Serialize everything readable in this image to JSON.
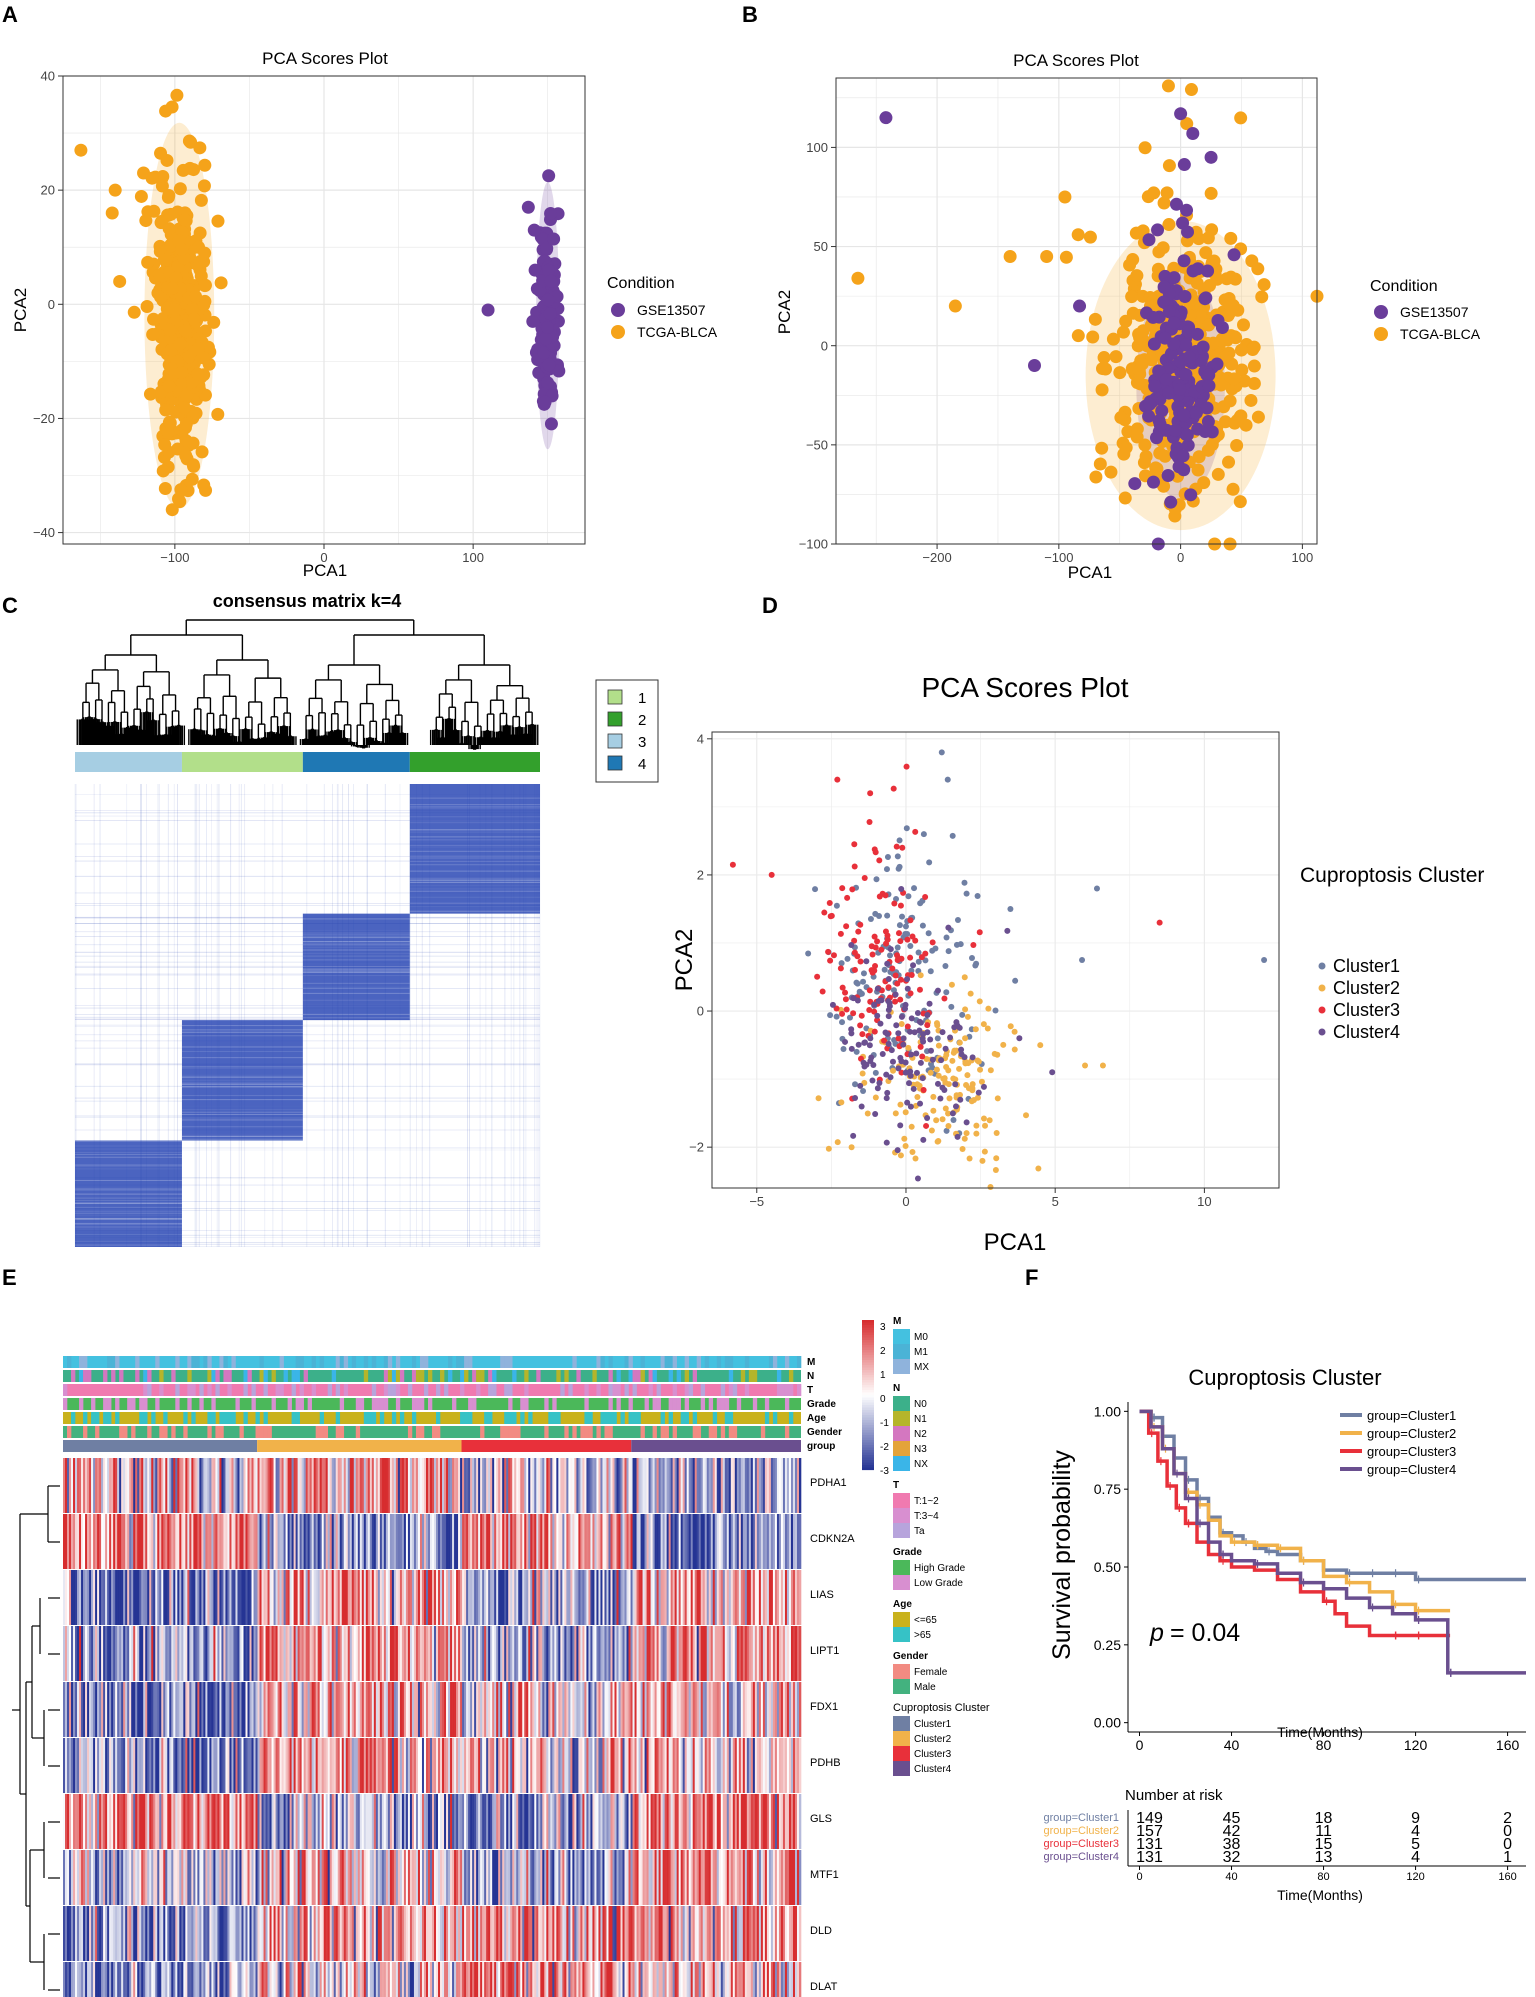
{
  "panel_labels": [
    "A",
    "B",
    "C",
    "D",
    "E",
    "F"
  ],
  "colors": {
    "gse": "#6a3d9a",
    "tcga": "#f5a31a",
    "cluster1": "#6f7fa3",
    "cluster2": "#f1b24a",
    "cluster3": "#e8303a",
    "cluster4": "#6a4f8f",
    "heat_low": "#253494",
    "heat_high": "#d7302f",
    "consensus": "#2b49b5",
    "cc1": "#b2df8a",
    "cc2": "#33a02c",
    "cc3": "#a6cee3",
    "cc4": "#1f78b4"
  },
  "chart_data": [
    {
      "id": "A",
      "type": "scatter",
      "title": "PCA Scores Plot",
      "xlabel": "PCA1",
      "ylabel": "PCA2",
      "xlim": [
        -175,
        175
      ],
      "ylim": [
        -42,
        40
      ],
      "xticks": [
        -100,
        0,
        100
      ],
      "yticks": [
        -40,
        -20,
        0,
        20,
        40
      ],
      "legend_title": "Condition",
      "series": [
        {
          "name": "GSE13507",
          "n": 160,
          "center": [
            150,
            -2
          ],
          "sd": [
            3,
            9
          ],
          "outliers": [
            [
              110,
              -1
            ],
            [
              140,
              -3
            ],
            [
              141,
              13
            ],
            [
              137,
              17
            ]
          ]
        },
        {
          "name": "TCGA-BLCA",
          "n": 420,
          "center": [
            -97,
            -2
          ],
          "sd": [
            9,
            13
          ],
          "outliers": [
            [
              -163,
              27
            ],
            [
              -142,
              16
            ],
            [
              -137,
              4
            ],
            [
              -140,
              20
            ],
            [
              -121,
              23
            ]
          ]
        }
      ]
    },
    {
      "id": "B",
      "type": "scatter",
      "title": "PCA Scores Plot",
      "xlabel": "PCA1",
      "ylabel": "PCA2",
      "xlim": [
        -283,
        112
      ],
      "ylim": [
        -100,
        135
      ],
      "xticks": [
        -200,
        -100,
        0,
        100
      ],
      "yticks": [
        -100,
        -50,
        0,
        50,
        100
      ],
      "legend_title": "Condition",
      "series": [
        {
          "name": "GSE13507",
          "n": 170,
          "center": [
            0,
            -20
          ],
          "sd": [
            14,
            22
          ],
          "outliers": [
            [
              -242,
              115
            ],
            [
              0,
              117
            ],
            [
              10,
              107
            ],
            [
              25,
              95
            ],
            [
              -120,
              -10
            ],
            [
              -83,
              20
            ]
          ]
        },
        {
          "name": "TCGA-BLCA",
          "n": 420,
          "center": [
            0,
            -15
          ],
          "sd": [
            30,
            30
          ],
          "outliers": [
            [
              -265,
              34
            ],
            [
              -185,
              20
            ],
            [
              -140,
              45
            ],
            [
              -95,
              75
            ],
            [
              -110,
              45
            ],
            [
              -10,
              131
            ]
          ]
        }
      ]
    },
    {
      "id": "C",
      "type": "heatmap",
      "title": "consensus matrix k=4",
      "top_bar_order": [
        3,
        1,
        4,
        2
      ],
      "block_proportions": [
        0.23,
        0.26,
        0.23,
        0.28
      ],
      "legend": [
        "1",
        "2",
        "3",
        "4"
      ]
    },
    {
      "id": "D",
      "type": "scatter",
      "title": "PCA Scores Plot",
      "xlabel": "PCA1",
      "ylabel": "PCA2",
      "xlim": [
        -6.5,
        12.5
      ],
      "ylim": [
        -2.6,
        4.1
      ],
      "xticks": [
        -5,
        0,
        5,
        10
      ],
      "yticks": [
        -2,
        0,
        2,
        4
      ],
      "legend_title": "Cuproptosis Cluster",
      "series": [
        {
          "name": "Cluster1",
          "n": 149,
          "center": [
            0,
            0.5
          ],
          "sd": [
            1.4,
            0.9
          ],
          "outliers": [
            [
              1.2,
              3.8
            ],
            [
              1.4,
              3.4
            ],
            [
              6.4,
              1.8
            ],
            [
              12,
              0.75
            ],
            [
              5.9,
              0.75
            ],
            [
              3.5,
              1.5
            ],
            [
              0.6,
              2.6
            ]
          ]
        },
        {
          "name": "Cluster2",
          "n": 157,
          "center": [
            1.2,
            -1.0
          ],
          "sd": [
            1.3,
            0.6
          ],
          "outliers": [
            [
              6.6,
              -0.8
            ],
            [
              6,
              -0.8
            ],
            [
              4.5,
              -0.5
            ]
          ]
        },
        {
          "name": "Cluster3",
          "n": 131,
          "center": [
            -0.8,
            0.7
          ],
          "sd": [
            1.0,
            0.8
          ],
          "outliers": [
            [
              -5.8,
              2.15
            ],
            [
              -4.5,
              2.0
            ],
            [
              8.5,
              1.3
            ],
            [
              -2.3,
              3.4
            ],
            [
              -1.2,
              3.2
            ]
          ]
        },
        {
          "name": "Cluster4",
          "n": 131,
          "center": [
            0,
            -0.6
          ],
          "sd": [
            1.2,
            0.7
          ],
          "outliers": [
            [
              4.9,
              -0.9
            ],
            [
              3.8,
              -0.4
            ]
          ]
        }
      ]
    },
    {
      "id": "E",
      "type": "heatmap",
      "annotation_rows": [
        "M",
        "N",
        "T",
        "Grade",
        "Age",
        "Gender",
        "group"
      ],
      "genes": [
        "PDHA1",
        "CDKN2A",
        "LIAS",
        "LIPT1",
        "FDX1",
        "PDHB",
        "GLS",
        "MTF1",
        "DLD",
        "DLAT"
      ],
      "group_proportions": [
        0.263,
        0.277,
        0.23,
        0.23
      ],
      "scale_ticks": [
        3,
        2,
        1,
        0,
        -1,
        -2,
        -3
      ],
      "legend": [
        {
          "title": "M",
          "items": [
            "M0",
            "M1",
            "MX"
          ]
        },
        {
          "title": "N",
          "items": [
            "N0",
            "N1",
            "N2",
            "N3",
            "NX"
          ]
        },
        {
          "title": "T",
          "items": [
            "T:1~2",
            "T:3~4",
            "Ta"
          ]
        },
        {
          "title": "Grade",
          "items": [
            "High Grade",
            "Low Grade"
          ]
        },
        {
          "title": "Age",
          "items": [
            "<=65",
            ">65"
          ]
        },
        {
          "title": "Gender",
          "items": [
            "Female",
            "Male"
          ]
        },
        {
          "title": "Cuproptosis Cluster",
          "items": [
            "Cluster1",
            "Cluster2",
            "Cluster3",
            "Cluster4"
          ]
        }
      ]
    },
    {
      "id": "F",
      "type": "line",
      "title": "Cuproptosis Cluster",
      "xlabel": "Time(Months)",
      "ylabel": "Survival probability",
      "xlim": [
        -5,
        168
      ],
      "ylim": [
        -0.03,
        1.03
      ],
      "xticks": [
        0,
        40,
        80,
        120,
        160
      ],
      "yticks": [
        0.0,
        0.25,
        0.5,
        0.75,
        1.0
      ],
      "pvalue_label": "p",
      "pvalue": "= 0.04",
      "series": [
        {
          "name": "group=Cluster1",
          "points": [
            [
              0,
              1
            ],
            [
              5,
              0.98
            ],
            [
              10,
              0.92
            ],
            [
              15,
              0.85
            ],
            [
              20,
              0.78
            ],
            [
              25,
              0.72
            ],
            [
              30,
              0.66
            ],
            [
              35,
              0.61
            ],
            [
              40,
              0.6
            ],
            [
              45,
              0.58
            ],
            [
              50,
              0.56
            ],
            [
              55,
              0.55
            ],
            [
              60,
              0.54
            ],
            [
              70,
              0.52
            ],
            [
              80,
              0.49
            ],
            [
              90,
              0.48
            ],
            [
              100,
              0.48
            ],
            [
              110,
              0.48
            ],
            [
              120,
              0.46
            ],
            [
              168,
              0.46
            ]
          ]
        },
        {
          "name": "group=Cluster2",
          "points": [
            [
              0,
              1
            ],
            [
              5,
              0.95
            ],
            [
              10,
              0.88
            ],
            [
              15,
              0.8
            ],
            [
              20,
              0.74
            ],
            [
              25,
              0.7
            ],
            [
              30,
              0.65
            ],
            [
              35,
              0.6
            ],
            [
              40,
              0.58
            ],
            [
              50,
              0.57
            ],
            [
              60,
              0.56
            ],
            [
              70,
              0.52
            ],
            [
              80,
              0.47
            ],
            [
              90,
              0.45
            ],
            [
              100,
              0.42
            ],
            [
              110,
              0.38
            ],
            [
              120,
              0.36
            ],
            [
              135,
              0.36
            ]
          ]
        },
        {
          "name": "group=Cluster3",
          "points": [
            [
              0,
              1
            ],
            [
              4,
              0.93
            ],
            [
              8,
              0.84
            ],
            [
              12,
              0.76
            ],
            [
              16,
              0.69
            ],
            [
              20,
              0.64
            ],
            [
              25,
              0.58
            ],
            [
              30,
              0.54
            ],
            [
              35,
              0.52
            ],
            [
              40,
              0.5
            ],
            [
              50,
              0.49
            ],
            [
              60,
              0.46
            ],
            [
              70,
              0.42
            ],
            [
              80,
              0.39
            ],
            [
              85,
              0.35
            ],
            [
              90,
              0.31
            ],
            [
              100,
              0.28
            ],
            [
              110,
              0.28
            ],
            [
              120,
              0.28
            ],
            [
              135,
              0.28
            ]
          ]
        },
        {
          "name": "group=Cluster4",
          "points": [
            [
              0,
              1
            ],
            [
              5,
              0.95
            ],
            [
              10,
              0.88
            ],
            [
              15,
              0.8
            ],
            [
              20,
              0.72
            ],
            [
              25,
              0.64
            ],
            [
              30,
              0.58
            ],
            [
              35,
              0.54
            ],
            [
              40,
              0.52
            ],
            [
              50,
              0.51
            ],
            [
              60,
              0.48
            ],
            [
              70,
              0.45
            ],
            [
              80,
              0.43
            ],
            [
              90,
              0.4
            ],
            [
              100,
              0.37
            ],
            [
              110,
              0.35
            ],
            [
              120,
              0.33
            ],
            [
              133,
              0.33
            ],
            [
              134,
              0.16
            ],
            [
              168,
              0.16
            ]
          ]
        }
      ],
      "risk_table": {
        "title": "Number at risk",
        "times": [
          0,
          40,
          80,
          120,
          160
        ],
        "rows": [
          {
            "name": "group=Cluster1",
            "values": [
              149,
              45,
              18,
              9,
              2
            ]
          },
          {
            "name": "group=Cluster2",
            "values": [
              157,
              42,
              11,
              4,
              0
            ]
          },
          {
            "name": "group=Cluster3",
            "values": [
              131,
              38,
              15,
              5,
              0
            ]
          },
          {
            "name": "group=Cluster4",
            "values": [
              131,
              32,
              13,
              4,
              1
            ]
          }
        ]
      }
    }
  ]
}
